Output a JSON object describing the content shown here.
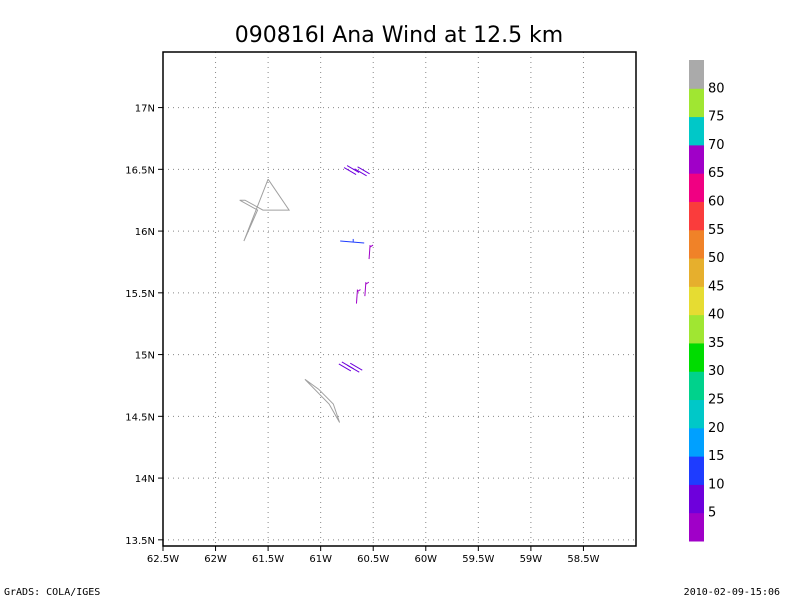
{
  "chart_data": {
    "type": "wind_barb_map",
    "title": "090816I Ana Wind at 12.5 km",
    "xlim": [
      -62.5,
      -58.0
    ],
    "ylim": [
      13.45,
      17.45
    ],
    "x_ticks": [
      {
        "value": -62.5,
        "label": "62.5W"
      },
      {
        "value": -62.0,
        "label": "62W"
      },
      {
        "value": -61.5,
        "label": "61.5W"
      },
      {
        "value": -61.0,
        "label": "61W"
      },
      {
        "value": -60.5,
        "label": "60.5W"
      },
      {
        "value": -60.0,
        "label": "60W"
      },
      {
        "value": -59.5,
        "label": "59.5W"
      },
      {
        "value": -59.0,
        "label": "59W"
      },
      {
        "value": -58.5,
        "label": "58.5W"
      }
    ],
    "y_ticks": [
      {
        "value": 13.5,
        "label": "13.5N"
      },
      {
        "value": 14.0,
        "label": "14N"
      },
      {
        "value": 14.5,
        "label": "14.5N"
      },
      {
        "value": 15.0,
        "label": "15N"
      },
      {
        "value": 15.5,
        "label": "15.5N"
      },
      {
        "value": 16.0,
        "label": "16N"
      },
      {
        "value": 16.5,
        "label": "16.5N"
      },
      {
        "value": 17.0,
        "label": "17N"
      }
    ],
    "grid": true,
    "coastlines": [
      [
        [
          -61.5,
          16.42
        ],
        [
          -61.3,
          16.17
        ],
        [
          -61.55,
          16.17
        ],
        [
          -61.72,
          16.25
        ],
        [
          -61.77,
          16.25
        ],
        [
          -61.6,
          16.17
        ],
        [
          -61.73,
          15.92
        ],
        [
          -61.5,
          16.42
        ]
      ],
      [
        [
          -61.15,
          14.8
        ],
        [
          -60.92,
          14.6
        ],
        [
          -60.82,
          14.45
        ],
        [
          -60.88,
          14.6
        ],
        [
          -61.02,
          14.72
        ],
        [
          -61.15,
          14.8
        ]
      ]
    ],
    "wind_barbs": [
      {
        "lon": -60.72,
        "lat": 16.49,
        "speed_kt": 10
      },
      {
        "lon": -60.62,
        "lat": 16.48,
        "speed_kt": 10
      },
      {
        "lon": -60.7,
        "lat": 15.92,
        "speed_kt": 15
      },
      {
        "lon": -60.53,
        "lat": 15.83,
        "speed_kt": 5
      },
      {
        "lon": -60.65,
        "lat": 15.47,
        "speed_kt": 5
      },
      {
        "lon": -60.57,
        "lat": 15.53,
        "speed_kt": 5
      },
      {
        "lon": -60.77,
        "lat": 14.9,
        "speed_kt": 10
      },
      {
        "lon": -60.69,
        "lat": 14.89,
        "speed_kt": 10
      }
    ],
    "colorbar": {
      "labels": [
        "5",
        "10",
        "15",
        "20",
        "25",
        "30",
        "35",
        "40",
        "45",
        "50",
        "55",
        "60",
        "65",
        "70",
        "75",
        "80"
      ],
      "colors": [
        "#a000c8",
        "#6e00dc",
        "#1e3cff",
        "#00a0ff",
        "#00c8c8",
        "#00d28c",
        "#00dc00",
        "#a0e632",
        "#e6dc32",
        "#e6af2d",
        "#f08228",
        "#fa3c3c",
        "#f00082",
        "#a000c8",
        "#00c8c8",
        "#a0e632",
        "#aaaaaa"
      ]
    }
  },
  "footer": {
    "left": "GrADS: COLA/IGES",
    "right": "2010-02-09-15:06"
  }
}
